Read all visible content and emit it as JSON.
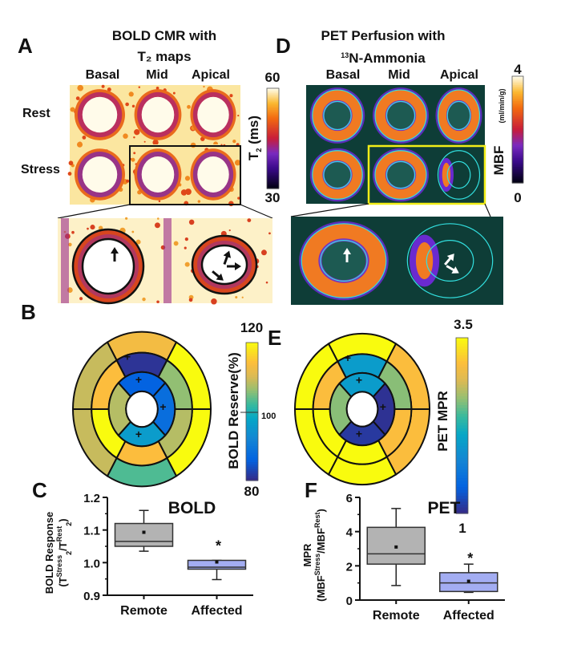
{
  "panel_labels": {
    "a": "A",
    "b": "B",
    "c": "C",
    "d": "D",
    "e": "E",
    "f": "F"
  },
  "panel_a": {
    "title_line1": "BOLD CMR with",
    "title_line2": "T₂ maps",
    "columns": [
      "Basal",
      "Mid",
      "Apical"
    ],
    "rows": [
      "Rest",
      "Stress"
    ],
    "colorbar": {
      "label_main": "T",
      "label_sub": "2",
      "label_unit": " (ms)",
      "max": "60",
      "min": "30"
    }
  },
  "panel_d": {
    "title_line1": "PET Perfusion with",
    "title_line2_sup": "13",
    "title_line2": "N-Ammonia",
    "columns": [
      "Basal",
      "Mid",
      "Apical"
    ],
    "colorbar": {
      "label": "MBF",
      "unit": "(ml/min/g)",
      "max": "4",
      "min": "0"
    }
  },
  "panel_b": {
    "colorbar": {
      "label": "BOLD Reserve(%)",
      "max": "120",
      "mid": "100",
      "min": "80",
      "range": [
        80,
        120
      ]
    },
    "marker": "+",
    "outer": [
      113,
      120,
      120,
      103,
      109,
      109
    ],
    "mid": [
      81,
      106,
      108,
      114,
      120,
      114
    ],
    "inner": [
      86,
      88,
      96,
      108
    ],
    "marked_mid": [
      true,
      false,
      false,
      false,
      false,
      false
    ],
    "marked_inner": [
      true,
      true,
      true,
      false
    ]
  },
  "panel_e": {
    "colorbar": {
      "label": "PET MPR",
      "max": "3.5",
      "min": "1",
      "range": [
        1,
        3.5
      ]
    },
    "marker": "+",
    "outer": [
      3.5,
      3.12,
      3.12,
      3.5,
      3.5,
      3.5
    ],
    "mid": [
      2.0,
      2.6,
      3.12,
      3.5,
      3.5,
      3.12
    ],
    "inner": [
      2.0,
      1.05,
      1.1,
      2.6
    ],
    "marked_mid": [
      true,
      false,
      false,
      false,
      false,
      false
    ],
    "marked_inner": [
      true,
      true,
      true,
      false
    ]
  },
  "chart_data": [
    {
      "type": "box",
      "panel": "C",
      "title": "BOLD",
      "ylabel": "BOLD Response",
      "ylabel2": {
        "open": "(T",
        "sup1": "Stress",
        "sub1": "2",
        "mid": "/T",
        "sup2": "Rest",
        "sub2": "2",
        "close": ")"
      },
      "categories": [
        "Remote",
        "Affected"
      ],
      "ylim": [
        0.9,
        1.2
      ],
      "yticks": [
        "0.9",
        "1.0",
        "1.1",
        "1.2"
      ],
      "series": [
        {
          "name": "Remote",
          "whisker_low": 1.035,
          "q1": 1.05,
          "median": 1.065,
          "q3": 1.12,
          "whisker_high": 1.16,
          "mean": 1.093,
          "color": "#b3b3b3"
        },
        {
          "name": "Affected",
          "whisker_low": 0.948,
          "q1": 0.98,
          "median": 0.986,
          "q3": 1.007,
          "whisker_high": 1.007,
          "mean": 1.002,
          "color": "#a3adf2",
          "annotation": "*"
        }
      ]
    },
    {
      "type": "box",
      "panel": "F",
      "title": "PET",
      "ylabel": "MPR",
      "ylabel2": {
        "open": "(MBF",
        "sup1": "Stress",
        "mid": "/MBF",
        "sup2": "Rest",
        "close": ")"
      },
      "categories": [
        "Remote",
        "Affected"
      ],
      "ylim": [
        0,
        6
      ],
      "yticks": [
        "0",
        "2",
        "4",
        "6"
      ],
      "series": [
        {
          "name": "Remote",
          "whisker_low": 0.85,
          "q1": 2.1,
          "median": 2.7,
          "q3": 4.25,
          "whisker_high": 5.35,
          "mean": 3.1,
          "color": "#b3b3b3"
        },
        {
          "name": "Affected",
          "whisker_low": 0.45,
          "q1": 0.5,
          "median": 1.0,
          "q3": 1.6,
          "whisker_high": 2.1,
          "mean": 1.1,
          "color": "#a3adf2",
          "annotation": "*"
        }
      ]
    }
  ]
}
